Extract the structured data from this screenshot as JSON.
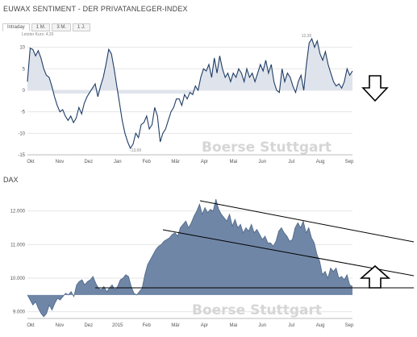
{
  "header": {
    "title": "EUWAX SENTIMENT - DER PRIVATANLEGER-INDEX",
    "tabs": [
      {
        "label": "Intraday",
        "active": true
      },
      {
        "label": "1 M.",
        "active": false
      },
      {
        "label": "3 M.",
        "active": false
      },
      {
        "label": "1 J.",
        "active": false
      }
    ],
    "last_price_label": "Letzter Kurs: 4,26"
  },
  "lower_title": "DAX",
  "watermark": "Boerse Stuttgart",
  "colors": {
    "sentiment_line": "#1f3d66",
    "sentiment_fill": "#dfe4ec",
    "dax_fill": "#6f86a6",
    "dax_line": "#4e6788",
    "dax_neg_fill": "#d8dee8",
    "grid": "#e6e6e6",
    "annotation": "#000000"
  },
  "chart_data": [
    {
      "type": "area",
      "ylim": [
        -15,
        12
      ],
      "yticks": [
        10,
        5,
        0,
        -5,
        -10,
        -15
      ],
      "xticks": [
        "Okt",
        "Nov",
        "Dez",
        "Jan",
        "Feb",
        "Mär",
        "Apr",
        "Mai",
        "Jun",
        "Jul",
        "Aug",
        "Sep"
      ],
      "min_label": "-13,69",
      "max_label": "12,35",
      "values": [
        2,
        9.8,
        9.5,
        8,
        9.2,
        7.5,
        5,
        3.5,
        3,
        1,
        -1.5,
        -3.5,
        -5,
        -4.5,
        -6,
        -7,
        -6,
        -7.5,
        -6.5,
        -4,
        -5.5,
        -3,
        -1.5,
        -0.5,
        0.5,
        1.5,
        -1.5,
        1,
        3,
        6,
        9.5,
        8.5,
        5,
        1,
        -3,
        -7,
        -10,
        -12,
        -13.5,
        -12.5,
        -10,
        -11,
        -8,
        -7.5,
        -6,
        -9,
        -8,
        -4,
        -6,
        -12,
        -10,
        -9,
        -7,
        -5,
        -4,
        -2,
        -2,
        -3.5,
        -1,
        -2,
        -0.5,
        -1,
        1,
        0,
        3,
        5,
        4.5,
        6,
        3,
        7.5,
        4,
        8,
        5,
        3,
        4,
        2,
        4,
        3,
        5,
        4,
        2,
        5,
        3,
        4,
        2,
        4,
        6,
        4.5,
        7,
        4,
        6,
        2,
        0,
        -0.5,
        5,
        2,
        4,
        3,
        1,
        -0.5,
        2,
        3.5,
        0,
        6,
        11,
        12,
        10,
        11.5,
        8.5,
        7,
        9,
        6,
        4,
        2,
        1,
        1.5,
        0.5,
        2,
        5,
        3.5,
        4.5
      ]
    },
    {
      "type": "area",
      "ylim": [
        8800,
        12400
      ],
      "yticks": [
        12000,
        11000,
        10000,
        9000
      ],
      "ytick_labels": [
        "12.000",
        "11.000",
        "10.000",
        "9.000"
      ],
      "xticks": [
        "Okt",
        "Nov",
        "Dez",
        "2015",
        "Feb",
        "Mär",
        "Apr",
        "Mai",
        "Jun",
        "Jul",
        "Aug",
        "Sep"
      ],
      "values": [
        9500,
        9350,
        9200,
        9300,
        9100,
        8950,
        8850,
        8950,
        9200,
        9050,
        9250,
        9400,
        9350,
        9450,
        9550,
        9500,
        9600,
        9450,
        9800,
        9900,
        9950,
        9800,
        9900,
        9950,
        10050,
        9850,
        9700,
        9650,
        9750,
        9600,
        9700,
        9800,
        9650,
        9750,
        9950,
        10000,
        10100,
        10050,
        9750,
        9550,
        9500,
        9600,
        9700,
        10100,
        10400,
        10550,
        10700,
        10850,
        10950,
        11000,
        11100,
        11150,
        11200,
        11300,
        11350,
        11250,
        11500,
        11600,
        11700,
        11500,
        11650,
        11850,
        12000,
        12200,
        11900,
        12100,
        11950,
        12050,
        12000,
        12350,
        12050,
        11900,
        11800,
        11700,
        11900,
        11550,
        11750,
        11500,
        11600,
        11350,
        11500,
        11400,
        11600,
        11350,
        11450,
        11300,
        11150,
        11250,
        11050,
        11050,
        10950,
        11100,
        11400,
        11500,
        11350,
        11250,
        11100,
        11150,
        11500,
        11650,
        11500,
        11700,
        11350,
        11500,
        11200,
        11050,
        10700,
        10500,
        10100,
        10200,
        10000,
        10300,
        10200,
        10300,
        10000,
        10050,
        9950,
        10100,
        9800,
        9750
      ]
    }
  ]
}
